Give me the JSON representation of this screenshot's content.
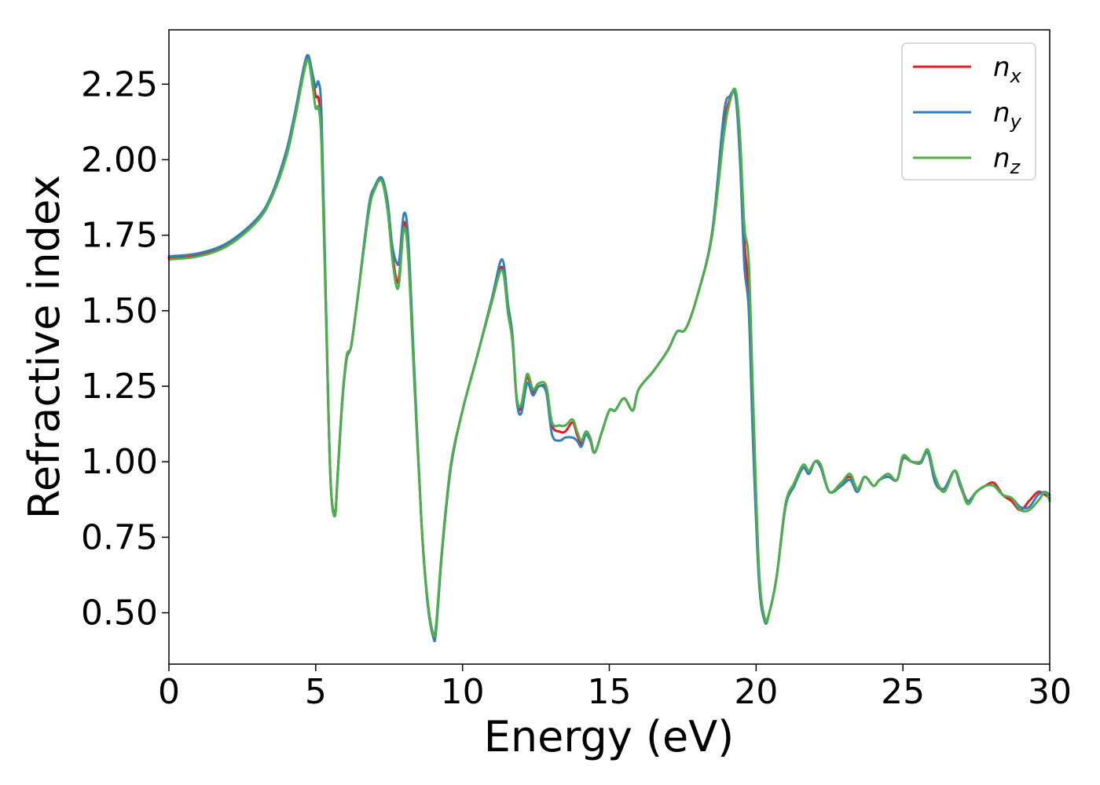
{
  "chart_data": {
    "type": "line",
    "title": "",
    "xlabel": "Energy (eV)",
    "ylabel": "Refractive index",
    "xlim": [
      0,
      30
    ],
    "ylim": [
      0.33,
      2.43
    ],
    "xticks": [
      0,
      5,
      10,
      15,
      20,
      25,
      30
    ],
    "xtick_labels": [
      "0",
      "5",
      "10",
      "15",
      "20",
      "25",
      "30"
    ],
    "yticks": [
      0.5,
      0.75,
      1.0,
      1.25,
      1.5,
      1.75,
      2.0,
      2.25
    ],
    "ytick_labels": [
      "0.50",
      "0.75",
      "1.00",
      "1.25",
      "1.50",
      "1.75",
      "2.00",
      "2.25"
    ],
    "grid": false,
    "legend_position": "top-right",
    "colors": {
      "nx": "#e41a1c",
      "ny": "#377eb8",
      "nz": "#4daf4a"
    },
    "series": [
      {
        "name": "n_x",
        "legend_base": "n",
        "legend_sub": "x",
        "color": "#e41a1c",
        "x": [
          0,
          1,
          2,
          3,
          3.5,
          4,
          4.3,
          4.6,
          4.75,
          4.9,
          5.0,
          5.1,
          5.2,
          5.35,
          5.5,
          5.65,
          5.75,
          5.9,
          6.05,
          6.2,
          6.4,
          6.8,
          7.0,
          7.25,
          7.45,
          7.6,
          7.75,
          7.85,
          8.0,
          8.15,
          8.35,
          8.6,
          8.8,
          9.0,
          9.1,
          9.3,
          9.6,
          10.0,
          10.5,
          11.0,
          11.35,
          11.55,
          11.7,
          11.85,
          12.0,
          12.2,
          12.4,
          12.6,
          12.85,
          13.05,
          13.3,
          13.5,
          13.75,
          13.9,
          14.05,
          14.2,
          14.35,
          14.5,
          14.75,
          15.0,
          15.2,
          15.5,
          15.8,
          16.0,
          16.5,
          17.0,
          17.3,
          17.6,
          18.0,
          18.5,
          18.9,
          19.1,
          19.3,
          19.45,
          19.6,
          19.75,
          19.9,
          20.1,
          20.3,
          20.45,
          20.7,
          21.0,
          21.3,
          21.6,
          21.8,
          22.0,
          22.2,
          22.5,
          22.9,
          23.2,
          23.45,
          23.7,
          24.0,
          24.2,
          24.5,
          24.8,
          25.0,
          25.3,
          25.6,
          25.85,
          26.1,
          26.4,
          26.75,
          26.95,
          27.2,
          27.5,
          27.8,
          28.1,
          28.4,
          28.7,
          29.0,
          29.3,
          29.6,
          29.85,
          30.0
        ],
        "y": [
          1.675,
          1.685,
          1.72,
          1.8,
          1.88,
          2.02,
          2.15,
          2.3,
          2.34,
          2.27,
          2.21,
          2.2,
          2.08,
          1.5,
          0.95,
          0.83,
          0.96,
          1.2,
          1.34,
          1.38,
          1.52,
          1.83,
          1.9,
          1.935,
          1.84,
          1.7,
          1.6,
          1.62,
          1.79,
          1.7,
          1.3,
          0.8,
          0.55,
          0.43,
          0.45,
          0.7,
          0.98,
          1.17,
          1.35,
          1.53,
          1.645,
          1.5,
          1.4,
          1.2,
          1.18,
          1.28,
          1.23,
          1.25,
          1.24,
          1.12,
          1.1,
          1.1,
          1.13,
          1.09,
          1.06,
          1.09,
          1.08,
          1.03,
          1.1,
          1.17,
          1.17,
          1.21,
          1.17,
          1.24,
          1.3,
          1.37,
          1.43,
          1.44,
          1.55,
          1.75,
          2.1,
          2.2,
          2.22,
          2.05,
          1.73,
          1.55,
          1.1,
          0.62,
          0.48,
          0.5,
          0.62,
          0.85,
          0.93,
          0.98,
          0.96,
          1.0,
          0.99,
          0.9,
          0.93,
          0.95,
          0.91,
          0.95,
          0.92,
          0.94,
          0.95,
          0.94,
          1.01,
          1.0,
          1.0,
          1.03,
          0.94,
          0.91,
          0.97,
          0.93,
          0.87,
          0.9,
          0.92,
          0.93,
          0.89,
          0.87,
          0.84,
          0.87,
          0.9,
          0.89,
          0.88
        ]
      },
      {
        "name": "n_y",
        "legend_base": "n",
        "legend_sub": "y",
        "color": "#377eb8",
        "x": [
          0,
          1,
          2,
          3,
          3.5,
          4,
          4.3,
          4.6,
          4.75,
          4.9,
          5.0,
          5.1,
          5.2,
          5.35,
          5.5,
          5.65,
          5.75,
          5.9,
          6.05,
          6.2,
          6.4,
          6.8,
          7.0,
          7.25,
          7.45,
          7.6,
          7.75,
          7.85,
          8.0,
          8.15,
          8.35,
          8.6,
          8.8,
          9.0,
          9.1,
          9.3,
          9.6,
          10.0,
          10.5,
          11.0,
          11.35,
          11.55,
          11.7,
          11.85,
          12.0,
          12.2,
          12.4,
          12.6,
          12.85,
          13.05,
          13.3,
          13.5,
          13.75,
          13.9,
          14.05,
          14.2,
          14.35,
          14.5,
          14.75,
          15.0,
          15.2,
          15.5,
          15.8,
          16.0,
          16.5,
          17.0,
          17.3,
          17.6,
          18.0,
          18.5,
          18.9,
          19.1,
          19.3,
          19.45,
          19.6,
          19.75,
          19.9,
          20.1,
          20.3,
          20.45,
          20.7,
          21.0,
          21.3,
          21.6,
          21.8,
          22.0,
          22.2,
          22.5,
          22.9,
          23.2,
          23.45,
          23.7,
          24.0,
          24.2,
          24.5,
          24.8,
          25.0,
          25.3,
          25.6,
          25.85,
          26.1,
          26.4,
          26.75,
          26.95,
          27.2,
          27.5,
          27.8,
          28.1,
          28.4,
          28.7,
          29.0,
          29.3,
          29.6,
          29.85,
          30.0
        ],
        "y": [
          1.68,
          1.69,
          1.725,
          1.805,
          1.885,
          2.03,
          2.16,
          2.31,
          2.345,
          2.28,
          2.24,
          2.255,
          2.14,
          1.52,
          0.95,
          0.82,
          0.96,
          1.19,
          1.34,
          1.38,
          1.52,
          1.84,
          1.91,
          1.94,
          1.86,
          1.72,
          1.66,
          1.67,
          1.82,
          1.74,
          1.32,
          0.8,
          0.54,
          0.42,
          0.44,
          0.7,
          0.98,
          1.17,
          1.35,
          1.54,
          1.67,
          1.52,
          1.42,
          1.2,
          1.16,
          1.26,
          1.22,
          1.25,
          1.23,
          1.09,
          1.07,
          1.08,
          1.08,
          1.07,
          1.05,
          1.09,
          1.07,
          1.03,
          1.1,
          1.17,
          1.17,
          1.21,
          1.17,
          1.24,
          1.3,
          1.37,
          1.43,
          1.44,
          1.55,
          1.76,
          2.15,
          2.21,
          2.21,
          2.0,
          1.65,
          1.5,
          1.05,
          0.6,
          0.47,
          0.5,
          0.62,
          0.85,
          0.92,
          0.98,
          0.96,
          1.0,
          0.98,
          0.9,
          0.92,
          0.94,
          0.9,
          0.95,
          0.92,
          0.94,
          0.95,
          0.94,
          1.01,
          1.0,
          0.995,
          1.03,
          0.93,
          0.91,
          0.97,
          0.92,
          0.87,
          0.9,
          0.92,
          0.92,
          0.89,
          0.88,
          0.85,
          0.85,
          0.89,
          0.9,
          0.89
        ]
      },
      {
        "name": "n_z",
        "legend_base": "n",
        "legend_sub": "z",
        "color": "#4daf4a",
        "x": [
          0,
          1,
          2,
          3,
          3.5,
          4,
          4.3,
          4.6,
          4.75,
          4.9,
          5.0,
          5.1,
          5.2,
          5.35,
          5.5,
          5.65,
          5.75,
          5.9,
          6.05,
          6.2,
          6.4,
          6.8,
          7.0,
          7.25,
          7.45,
          7.6,
          7.75,
          7.85,
          8.0,
          8.15,
          8.35,
          8.6,
          8.8,
          9.0,
          9.1,
          9.3,
          9.6,
          10.0,
          10.5,
          11.0,
          11.35,
          11.55,
          11.7,
          11.85,
          12.0,
          12.2,
          12.4,
          12.6,
          12.85,
          13.05,
          13.3,
          13.5,
          13.75,
          13.9,
          14.05,
          14.2,
          14.35,
          14.5,
          14.75,
          15.0,
          15.2,
          15.5,
          15.8,
          16.0,
          16.5,
          17.0,
          17.3,
          17.6,
          18.0,
          18.5,
          18.9,
          19.1,
          19.3,
          19.45,
          19.6,
          19.75,
          19.9,
          20.1,
          20.3,
          20.45,
          20.7,
          21.0,
          21.3,
          21.6,
          21.8,
          22.0,
          22.2,
          22.5,
          22.9,
          23.2,
          23.45,
          23.7,
          24.0,
          24.2,
          24.5,
          24.8,
          25.0,
          25.3,
          25.6,
          25.85,
          26.1,
          26.4,
          26.75,
          26.95,
          27.2,
          27.5,
          27.8,
          28.1,
          28.4,
          28.7,
          29.0,
          29.3,
          29.6,
          29.85,
          30.0
        ],
        "y": [
          1.67,
          1.68,
          1.715,
          1.795,
          1.875,
          2.01,
          2.14,
          2.29,
          2.33,
          2.24,
          2.17,
          2.17,
          2.04,
          1.48,
          0.95,
          0.82,
          0.97,
          1.2,
          1.35,
          1.38,
          1.52,
          1.82,
          1.9,
          1.93,
          1.83,
          1.68,
          1.58,
          1.6,
          1.77,
          1.68,
          1.28,
          0.8,
          0.55,
          0.43,
          0.46,
          0.71,
          0.99,
          1.17,
          1.35,
          1.53,
          1.635,
          1.49,
          1.4,
          1.21,
          1.19,
          1.29,
          1.24,
          1.26,
          1.25,
          1.13,
          1.12,
          1.12,
          1.14,
          1.1,
          1.07,
          1.1,
          1.08,
          1.03,
          1.1,
          1.17,
          1.17,
          1.21,
          1.17,
          1.24,
          1.3,
          1.37,
          1.43,
          1.44,
          1.55,
          1.75,
          2.08,
          2.19,
          2.23,
          2.08,
          1.78,
          1.66,
          1.2,
          0.64,
          0.48,
          0.5,
          0.62,
          0.86,
          0.93,
          0.99,
          0.97,
          1.0,
          0.99,
          0.9,
          0.93,
          0.96,
          0.91,
          0.95,
          0.92,
          0.94,
          0.96,
          0.94,
          1.02,
          1.0,
          1.0,
          1.04,
          0.95,
          0.9,
          0.97,
          0.93,
          0.86,
          0.9,
          0.92,
          0.92,
          0.89,
          0.88,
          0.84,
          0.84,
          0.87,
          0.9,
          0.87
        ]
      }
    ]
  }
}
